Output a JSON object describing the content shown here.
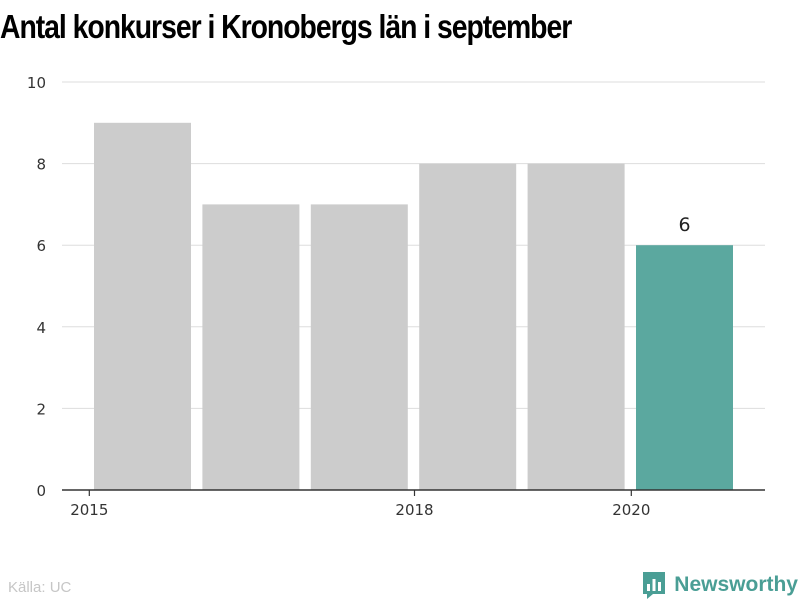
{
  "chart_data": {
    "type": "bar",
    "title": "Antal konkurser i Kronobergs län i september",
    "x": [
      2015,
      2016,
      2017,
      2018,
      2019,
      2020
    ],
    "values": [
      9,
      7,
      7,
      8,
      8,
      6
    ],
    "x_tick_labels": [
      "2015",
      "2018",
      "2020"
    ],
    "y_ticks": [
      "0",
      "2",
      "4",
      "6",
      "8",
      "10"
    ],
    "ylim": [
      0,
      10
    ],
    "highlight_label": "6",
    "grid": true,
    "colors": {
      "bar": "#cccccc",
      "highlight": "#5ba89f"
    }
  },
  "footer": {
    "source": "Källa: UC",
    "brand": "Newsworthy",
    "brand_icon": "bar-chart-logo-icon"
  }
}
